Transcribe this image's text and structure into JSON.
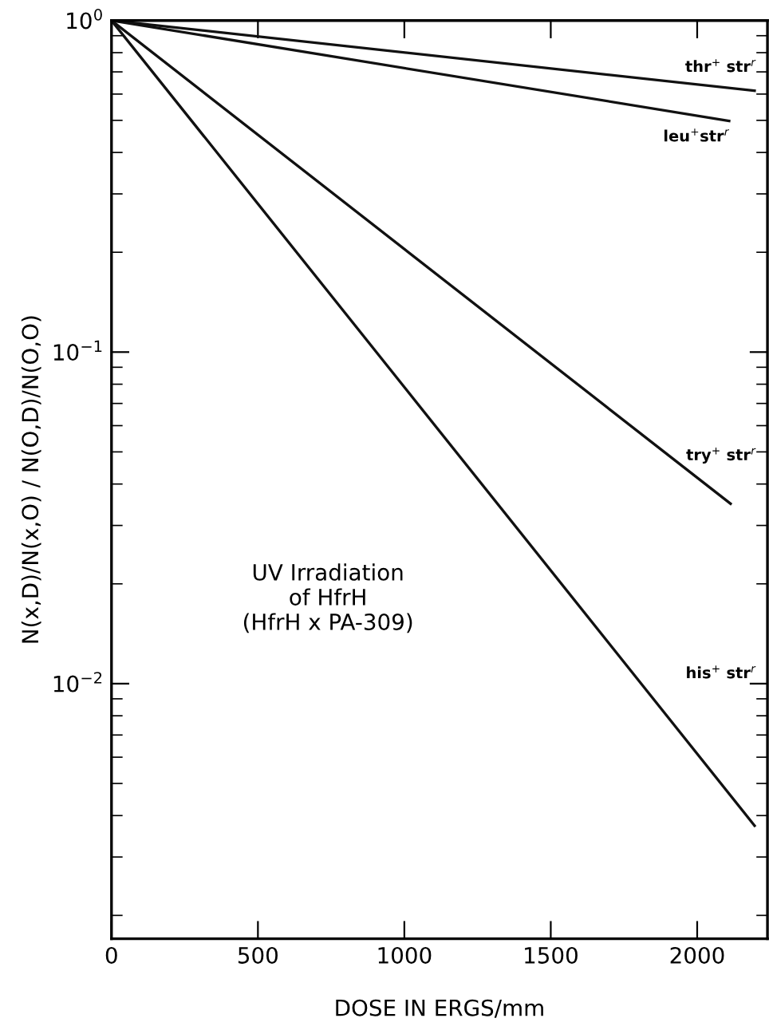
{
  "chart_data": {
    "type": "line",
    "xlabel": "DOSE IN ERGS/mm",
    "ylabel": "N(x,D)/N(x,O) / N(O,D)/N(O,O)",
    "annotations": [
      "UV Irradiation\nof HfrH\n(HfrH x PA-309)"
    ],
    "series": [
      {
        "name": "thr$^{+}$ str$^{r}$",
        "color": "#111111",
        "x": [
          0,
          2196
        ],
        "values": [
          1,
          0.614
        ]
      },
      {
        "name": "leu$^{+}$str$^{r}$",
        "color": "#111111",
        "x": [
          0,
          2109
        ],
        "values": [
          1,
          0.498
        ]
      },
      {
        "name": "try$^{+}$ str$^{r}$",
        "color": "#111111",
        "x": [
          0,
          2114
        ],
        "values": [
          1,
          0.0349
        ]
      },
      {
        "name": "his$^{+}$ str$^{r}$",
        "color": "#111111",
        "x": [
          0,
          2196
        ],
        "values": [
          1,
          0.00373
        ]
      }
    ],
    "log": "y",
    "xlim": [
      0,
      2240
    ],
    "ylim": [
      0.0017,
      1
    ],
    "xticks": [
      0,
      500,
      1000,
      1500,
      2000
    ],
    "yticks": [
      {
        "value": 1,
        "label": "10$^{0}$"
      },
      {
        "value": 0.1,
        "label": "10$^{−1}$"
      },
      {
        "value": 0.01,
        "label": "10$^{−2}$"
      }
    ],
    "grid": false,
    "legend": false,
    "marker": "none",
    "line_style": "solid"
  }
}
